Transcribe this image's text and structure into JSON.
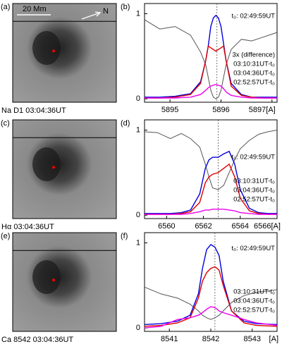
{
  "images": [
    {
      "panel": "(a)",
      "caption": "Na D1  03:04:36UT",
      "scale": "20 Mm",
      "north": "N"
    },
    {
      "panel": "(c)",
      "caption": "Hα  03:04:36UT"
    },
    {
      "panel": "(e)",
      "caption": "Ca 8542  03:04:36UT"
    }
  ],
  "chart_data": [
    {
      "type": "line",
      "panel": "(b)",
      "annotation": "3x (difference)",
      "x": [
        5894.5,
        5894.8,
        5895.1,
        5895.4,
        5895.6,
        5895.7,
        5895.75,
        5895.8,
        5895.85,
        5895.9,
        5895.95,
        5896.0,
        5896.05,
        5896.1,
        5896.2,
        5896.4,
        5896.6,
        5896.8,
        5897.1
      ],
      "series": [
        {
          "name": "t₀: 02:49:59UT",
          "color": "#555555",
          "values": [
            0.93,
            0.82,
            0.85,
            0.75,
            0.55,
            0.4,
            0.25,
            0.1,
            0.02,
            0.0,
            0.02,
            0.1,
            0.25,
            0.4,
            0.58,
            0.7,
            0.68,
            0.72,
            0.78
          ]
        },
        {
          "name": "03:10:31UT-t₀",
          "color": "#0000dd",
          "values": [
            0.02,
            0.02,
            0.03,
            0.06,
            0.2,
            0.45,
            0.62,
            0.85,
            0.95,
            0.98,
            0.95,
            0.85,
            0.65,
            0.45,
            0.18,
            0.05,
            0.02,
            0.02,
            0.02
          ]
        },
        {
          "name": "03:04:36UT-t₀",
          "color": "#dd0000",
          "values": [
            0.01,
            0.01,
            0.02,
            0.05,
            0.18,
            0.45,
            0.62,
            0.6,
            0.58,
            0.56,
            0.58,
            0.6,
            0.62,
            0.45,
            0.15,
            0.04,
            0.02,
            0.01,
            0.01
          ]
        },
        {
          "name": "02:52:57UT-t₀",
          "color": "#ee00ee",
          "values": [
            0.01,
            0.01,
            0.01,
            0.02,
            0.05,
            0.1,
            0.13,
            0.15,
            0.16,
            0.17,
            0.16,
            0.15,
            0.12,
            0.08,
            0.04,
            0.02,
            0.01,
            0.01,
            0.01
          ]
        }
      ],
      "xlim": [
        5894.5,
        5897.1
      ],
      "ylim": [
        -0.04,
        1.12
      ],
      "xticks": [
        5895,
        5896,
        {
          "value": 5897,
          "label": "5897[A]"
        }
      ],
      "yticks": [
        0,
        1
      ],
      "vline": 5895.92
    },
    {
      "type": "line",
      "panel": "(d)",
      "x": [
        6558.8,
        6559.5,
        6560.2,
        6560.8,
        6561.3,
        6561.8,
        6562.1,
        6562.3,
        6562.5,
        6562.8,
        6563.1,
        6563.4,
        6563.7,
        6564.0,
        6564.5,
        6565.0,
        6565.5,
        6566.0
      ],
      "series": [
        {
          "name": "t₀: 02:49:59UT",
          "color": "#555555",
          "values": [
            0.98,
            0.97,
            0.9,
            0.96,
            0.9,
            0.8,
            0.6,
            0.45,
            0.32,
            0.3,
            0.35,
            0.5,
            0.65,
            0.78,
            0.88,
            0.95,
            0.98,
            1.0
          ]
        },
        {
          "name": "03:10:31UT-t₀",
          "color": "#0000dd",
          "values": [
            0.02,
            0.02,
            0.02,
            0.03,
            0.06,
            0.25,
            0.55,
            0.65,
            0.68,
            0.68,
            0.72,
            0.75,
            0.6,
            0.3,
            0.08,
            0.03,
            0.02,
            0.02
          ]
        },
        {
          "name": "03:04:36UT-t₀",
          "color": "#dd0000",
          "values": [
            0.01,
            0.01,
            0.01,
            0.02,
            0.04,
            0.15,
            0.38,
            0.45,
            0.48,
            0.5,
            0.55,
            0.6,
            0.45,
            0.2,
            0.05,
            0.02,
            0.01,
            0.01
          ]
        },
        {
          "name": "02:52:57UT-t₀",
          "color": "#ee00ee",
          "values": [
            0.01,
            0.01,
            0.01,
            0.01,
            0.02,
            0.04,
            0.06,
            0.06,
            0.07,
            0.07,
            0.07,
            0.06,
            0.05,
            0.03,
            0.02,
            0.01,
            0.01,
            0.01
          ]
        }
      ],
      "xlim": [
        6558.8,
        6566.0
      ],
      "ylim": [
        -0.04,
        1.12
      ],
      "xticks": [
        6560,
        6562,
        6564,
        {
          "value": 6566,
          "label": "6566[A]"
        }
      ],
      "yticks": [
        0,
        1
      ],
      "vline": 6562.8
    },
    {
      "type": "line",
      "panel": "(f)",
      "x_unit": "[A]",
      "x": [
        8540.4,
        8540.8,
        8541.2,
        8541.5,
        8541.7,
        8541.8,
        8541.9,
        8542.0,
        8542.1,
        8542.2,
        8542.3,
        8542.5,
        8542.8,
        8543.1,
        8543.6
      ],
      "series": [
        {
          "name": "t₀: 02:49:59UT",
          "color": "#555555",
          "values": [
            0.48,
            0.4,
            0.35,
            0.28,
            0.2,
            0.15,
            0.12,
            0.1,
            0.12,
            0.15,
            0.2,
            0.3,
            0.38,
            0.42,
            0.45
          ]
        },
        {
          "name": "03:10:31UT-t₀",
          "color": "#0000dd",
          "values": [
            0.04,
            0.05,
            0.08,
            0.15,
            0.4,
            0.7,
            0.92,
            0.98,
            0.95,
            0.85,
            0.55,
            0.2,
            0.08,
            0.05,
            0.04
          ]
        },
        {
          "name": "03:04:36UT-t₀",
          "color": "#dd0000",
          "values": [
            0.02,
            0.03,
            0.06,
            0.12,
            0.35,
            0.55,
            0.65,
            0.7,
            0.72,
            0.68,
            0.5,
            0.2,
            0.06,
            0.03,
            0.02
          ]
        },
        {
          "name": "02:52:57UT-t₀",
          "color": "#ee00ee",
          "values": [
            0.0,
            0.02,
            0.1,
            0.12,
            0.15,
            0.18,
            0.22,
            0.25,
            0.24,
            0.2,
            0.18,
            0.15,
            0.1,
            0.06,
            0.03
          ]
        }
      ],
      "xlim": [
        8540.4,
        8543.6
      ],
      "ylim": [
        -0.04,
        1.12
      ],
      "xticks": [
        8541,
        8542,
        8543
      ],
      "yticks": [
        0,
        1
      ],
      "vline": 8542.1
    }
  ]
}
